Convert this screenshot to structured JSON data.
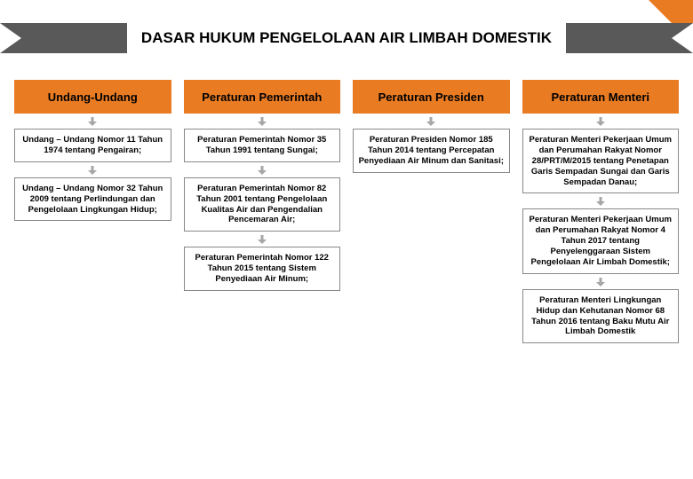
{
  "title": "DASAR HUKUM PENGELOLAAN AIR LIMBAH DOMESTIK",
  "colors": {
    "accent": "#e97b23",
    "barBg": "#595959",
    "boxBorder": "#888888",
    "arrowFill": "#a6a6a6",
    "textColor": "#000000"
  },
  "arrow": {
    "w": 10,
    "h": 10
  },
  "columns": [
    {
      "header": "Undang-Undang",
      "items": [
        "Undang – Undang Nomor 11 Tahun 1974 tentang Pengairan;",
        "Undang – Undang Nomor 32 Tahun 2009 tentang Perlindungan dan Pengelolaan Lingkungan Hidup;"
      ]
    },
    {
      "header": "Peraturan Pemerintah",
      "items": [
        "Peraturan Pemerintah Nomor 35 Tahun 1991 tentang Sungai;",
        "Peraturan Pemerintah Nomor 82 Tahun 2001 tentang Pengelolaan Kualitas Air dan Pengendalian Pencemaran Air;",
        "Peraturan Pemerintah Nomor 122 Tahun 2015 tentang Sistem Penyediaan Air Minum;"
      ]
    },
    {
      "header": "Peraturan Presiden",
      "items": [
        "Peraturan Presiden Nomor 185 Tahun 2014 tentang Percepatan Penyediaan Air Minum dan Sanitasi;"
      ]
    },
    {
      "header": "Peraturan Menteri",
      "items": [
        "Peraturan Menteri Pekerjaan Umum dan Perumahan Rakyat Nomor 28/PRT/M/2015 tentang Penetapan Garis Sempadan Sungai dan Garis Sempadan Danau;",
        "Peraturan Menteri Pekerjaan Umum dan Perumahan Rakyat Nomor 4 Tahun 2017 tentang Penyelenggaraan Sistem Pengelolaan Air Limbah Domestik;",
        "Peraturan Menteri Lingkungan Hidup dan Kehutanan Nomor 68 Tahun 2016 tentang Baku Mutu Air Limbah Domestik"
      ]
    }
  ]
}
